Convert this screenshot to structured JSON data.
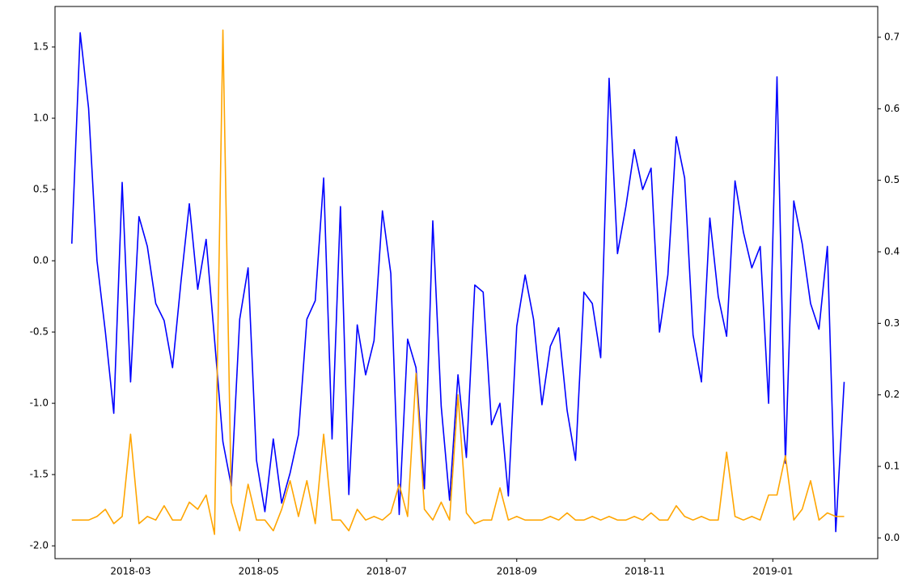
{
  "chart_data": {
    "type": "line",
    "x": [
      "2018-02-01",
      "2018-02-05",
      "2018-02-09",
      "2018-02-13",
      "2018-02-17",
      "2018-02-21",
      "2018-02-25",
      "2018-03-01",
      "2018-03-05",
      "2018-03-09",
      "2018-03-13",
      "2018-03-17",
      "2018-03-21",
      "2018-03-25",
      "2018-03-29",
      "2018-04-02",
      "2018-04-06",
      "2018-04-10",
      "2018-04-14",
      "2018-04-18",
      "2018-04-22",
      "2018-04-26",
      "2018-04-30",
      "2018-05-04",
      "2018-05-08",
      "2018-05-12",
      "2018-05-16",
      "2018-05-20",
      "2018-05-24",
      "2018-05-28",
      "2018-06-01",
      "2018-06-05",
      "2018-06-09",
      "2018-06-13",
      "2018-06-17",
      "2018-06-21",
      "2018-06-25",
      "2018-06-29",
      "2018-07-03",
      "2018-07-07",
      "2018-07-11",
      "2018-07-15",
      "2018-07-19",
      "2018-07-23",
      "2018-07-27",
      "2018-07-31",
      "2018-08-04",
      "2018-08-08",
      "2018-08-12",
      "2018-08-16",
      "2018-08-20",
      "2018-08-24",
      "2018-08-28",
      "2018-09-01",
      "2018-09-05",
      "2018-09-09",
      "2018-09-13",
      "2018-09-17",
      "2018-09-21",
      "2018-09-25",
      "2018-09-29",
      "2018-10-03",
      "2018-10-07",
      "2018-10-11",
      "2018-10-15",
      "2018-10-19",
      "2018-10-23",
      "2018-10-27",
      "2018-10-31",
      "2018-11-04",
      "2018-11-08",
      "2018-11-12",
      "2018-11-16",
      "2018-11-20",
      "2018-11-24",
      "2018-11-28",
      "2018-12-02",
      "2018-12-06",
      "2018-12-10",
      "2018-12-14",
      "2018-12-18",
      "2018-12-22",
      "2018-12-26",
      "2018-12-30",
      "2019-01-03",
      "2019-01-07",
      "2019-01-11",
      "2019-01-15",
      "2019-01-19",
      "2019-01-23",
      "2019-01-27",
      "2019-01-31",
      "2019-02-04"
    ],
    "series": [
      {
        "color": "#0000ff",
        "axis": "y",
        "values": [
          0.12,
          1.6,
          1.07,
          0.0,
          -0.5,
          -1.07,
          0.55,
          -0.85,
          0.31,
          0.1,
          -0.3,
          -0.42,
          -0.75,
          -0.15,
          0.4,
          -0.2,
          0.15,
          -0.55,
          -1.27,
          -1.58,
          -0.41,
          -0.05,
          -1.4,
          -1.76,
          -1.25,
          -1.7,
          -1.49,
          -1.22,
          -0.41,
          -0.28,
          0.58,
          -1.25,
          0.38,
          -1.64,
          -0.45,
          -0.8,
          -0.56,
          0.35,
          -0.09,
          -1.78,
          -0.55,
          -0.75,
          -1.6,
          0.28,
          -1.02,
          -1.68,
          -0.8,
          -1.38,
          -0.17,
          -0.22,
          -1.15,
          -1.0,
          -1.65,
          -0.46,
          -0.1,
          -0.41,
          -1.01,
          -0.6,
          -0.47,
          -1.05,
          -1.4,
          -0.22,
          -0.3,
          -0.68,
          1.28,
          0.05,
          0.38,
          0.78,
          0.5,
          0.65,
          -0.5,
          -0.1,
          0.87,
          0.58,
          -0.52,
          -0.85,
          0.3,
          -0.25,
          -0.53,
          0.56,
          0.2,
          -0.05,
          0.1,
          -1.0,
          1.29,
          -1.42,
          0.42,
          0.12,
          -0.3,
          -0.48,
          0.1,
          -1.9,
          -0.85
        ]
      },
      {
        "color": "#ffa500",
        "axis": "y2",
        "values": [
          0.025,
          0.025,
          0.025,
          0.03,
          0.04,
          0.02,
          0.03,
          0.145,
          0.02,
          0.03,
          0.025,
          0.045,
          0.025,
          0.025,
          0.05,
          0.04,
          0.06,
          0.005,
          0.71,
          0.05,
          0.01,
          0.075,
          0.025,
          0.025,
          0.01,
          0.04,
          0.08,
          0.03,
          0.08,
          0.02,
          0.145,
          0.025,
          0.025,
          0.01,
          0.04,
          0.025,
          0.03,
          0.025,
          0.035,
          0.075,
          0.03,
          0.23,
          0.04,
          0.025,
          0.05,
          0.025,
          0.2,
          0.035,
          0.02,
          0.025,
          0.025,
          0.07,
          0.025,
          0.03,
          0.025,
          0.025,
          0.025,
          0.03,
          0.025,
          0.035,
          0.025,
          0.025,
          0.03,
          0.025,
          0.03,
          0.025,
          0.025,
          0.03,
          0.025,
          0.035,
          0.025,
          0.025,
          0.045,
          0.03,
          0.025,
          0.03,
          0.025,
          0.025,
          0.12,
          0.03,
          0.025,
          0.03,
          0.025,
          0.06,
          0.06,
          0.115,
          0.025,
          0.04,
          0.08,
          0.025,
          0.035,
          0.03,
          0.03
        ]
      }
    ],
    "xlim": [
      "2018-01-24",
      "2019-02-20"
    ],
    "xticks": [
      {
        "value": "2018-03-01",
        "label": "2018-03"
      },
      {
        "value": "2018-05-01",
        "label": "2018-05"
      },
      {
        "value": "2018-07-01",
        "label": "2018-07"
      },
      {
        "value": "2018-09-01",
        "label": "2018-09"
      },
      {
        "value": "2018-11-01",
        "label": "2018-11"
      },
      {
        "value": "2019-01-01",
        "label": "2019-01"
      }
    ],
    "ylim": [
      -2.09,
      1.784
    ],
    "yticks": [
      {
        "value": -2,
        "label": "-2.0"
      },
      -1.5,
      {
        "value": -1,
        "label": "-1.0"
      },
      -0.5,
      {
        "value": 0,
        "label": "0.0"
      },
      0.5,
      {
        "value": 1,
        "label": "1.0"
      },
      1.5
    ],
    "y2lim": [
      -0.029,
      0.743
    ],
    "y2ticks": [
      {
        "value": 0,
        "label": "0.0"
      },
      0.1,
      0.2,
      0.3,
      0.4,
      0.5,
      0.6,
      0.7
    ]
  }
}
